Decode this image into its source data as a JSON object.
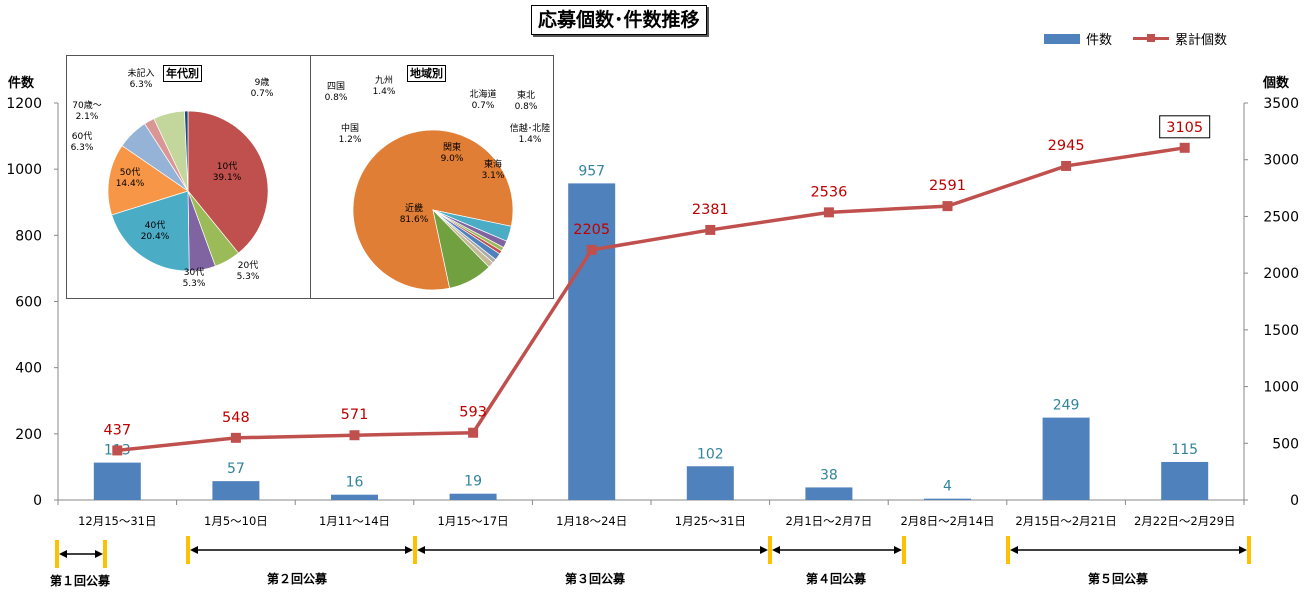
{
  "title": "応募個数･件数推移",
  "y_left_label": "件数",
  "y_right_label": "個数",
  "legend": {
    "bars": "件数",
    "line": "累計個数"
  },
  "colors": {
    "bar": "#4f81bd",
    "line": "#c0504d",
    "bar_label": "#31849b",
    "line_label": "#c00000",
    "marker": "#ffc000"
  },
  "chart_data": [
    {
      "type": "bar+line",
      "title": "応募個数･件数推移",
      "categories": [
        "12月15〜31日",
        "1月5〜10日",
        "1月11〜14日",
        "1月15〜17日",
        "1月18〜24日",
        "1月25〜31日",
        "2月1日〜2月7日",
        "2月8日〜2月14日",
        "2月15日〜2月21日",
        "2月22日〜2月29日"
      ],
      "series": [
        {
          "name": "件数",
          "type": "bar",
          "axis": "left",
          "values": [
            113,
            57,
            16,
            19,
            957,
            102,
            38,
            4,
            249,
            115
          ]
        },
        {
          "name": "累計個数",
          "type": "line",
          "axis": "right",
          "values": [
            437,
            548,
            571,
            593,
            2205,
            2381,
            2536,
            2591,
            2945,
            3105
          ]
        }
      ],
      "ylabel": "件数",
      "y2label": "個数",
      "ylim": [
        0,
        1200
      ],
      "y2lim": [
        0,
        3500
      ],
      "yticks": [
        0,
        200,
        400,
        600,
        800,
        1000,
        1200
      ],
      "y2ticks": [
        0,
        500,
        1000,
        1500,
        2000,
        2500,
        3000,
        3500
      ],
      "highlighted_point": "3105",
      "legend_position": "top-right",
      "grid": false
    },
    {
      "type": "pie",
      "title": "年代別",
      "labels": [
        "10代",
        "20代",
        "30代",
        "40代",
        "50代",
        "60代",
        "70歳〜",
        "未記入",
        "9歳"
      ],
      "values": [
        39.1,
        5.3,
        5.3,
        20.4,
        14.4,
        6.3,
        2.1,
        6.3,
        0.7
      ],
      "display": [
        "39.1%",
        "5.3%",
        "5.3%",
        "20.4%",
        "14.4%",
        "6.3%",
        "2.1%",
        "6.3%",
        "0.7%"
      ],
      "colors": [
        "#c0504d",
        "#9bbb59",
        "#8064a2",
        "#4bacc6",
        "#f79646",
        "#95b3d7",
        "#d99694",
        "#c3d69b",
        "#1f497d"
      ]
    },
    {
      "type": "pie",
      "title": "地域別",
      "labels": [
        "近畿",
        "東海",
        "信越･北陸",
        "東北",
        "北海道",
        "九州",
        "四国",
        "中国",
        "関東"
      ],
      "values": [
        81.6,
        3.1,
        1.4,
        0.8,
        0.7,
        1.4,
        0.8,
        1.2,
        9.0
      ],
      "display": [
        "81.6%",
        "3.1%",
        "1.4%",
        "0.8%",
        "0.7%",
        "1.4%",
        "0.8%",
        "1.2%",
        "9.0%"
      ],
      "colors": [
        "#e07e35",
        "#4bacc6",
        "#8064a2",
        "#9bbb59",
        "#c0504d",
        "#4f81bd",
        "#aaaaaa",
        "#c6b998",
        "#70a040"
      ]
    }
  ],
  "rounds": [
    {
      "label": "第１回公募"
    },
    {
      "label": "第２回公募"
    },
    {
      "label": "第３回公募"
    },
    {
      "label": "第４回公募"
    },
    {
      "label": "第５回公募"
    }
  ]
}
